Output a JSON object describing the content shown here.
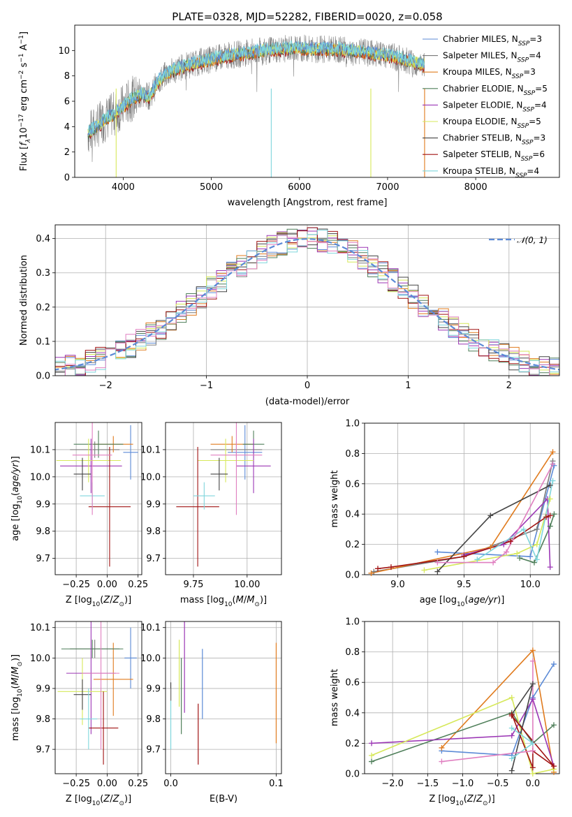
{
  "title": "PLATE=0328, MJD=52282, FIBERID=0020, z=0.058",
  "colors": {
    "Chabrier MILES": "#5b8ad6",
    "Salpeter MILES": "#7a7a7a",
    "Kroupa MILES": "#e07b1e",
    "Chabrier ELODIE": "#4f7f5a",
    "Salpeter ELODIE": "#9b36b5",
    "Kroupa ELODIE": "#d6e85a",
    "Chabrier STELIB": "#444444",
    "Salpeter STELIB": "#a01212",
    "Kroupa STELIB": "#7fd6dc",
    "observed": "#808080",
    "pink": "#e07fc0",
    "gaussian": "#5b8ad6"
  },
  "chart_data": [
    {
      "type": "line",
      "id": "spectrum",
      "xlabel": "wavelength [Angstrom, rest frame]",
      "ylabel": "Flux [f_λ10^-17 erg cm^-2 s^-1 A^-1]",
      "xlim": [
        3450,
        8950
      ],
      "ylim": [
        0,
        12
      ],
      "xticks": [
        4000,
        5000,
        6000,
        7000,
        8000
      ],
      "yticks": [
        0,
        2,
        4,
        6,
        8,
        10
      ],
      "legend": {
        "position": "upper-right",
        "entries": [
          {
            "name": "Chabrier MILES, N",
            "sub": "SSP",
            "suffix": "=3"
          },
          {
            "name": "Salpeter MILES, N",
            "sub": "SSP",
            "suffix": "=4"
          },
          {
            "name": "Kroupa MILES, N",
            "sub": "SSP",
            "suffix": "=3"
          },
          {
            "name": "Chabrier ELODIE, N",
            "sub": "SSP",
            "suffix": "=5"
          },
          {
            "name": "Salpeter ELODIE, N",
            "sub": "SSP",
            "suffix": "=4"
          },
          {
            "name": "Kroupa ELODIE, N",
            "sub": "SSP",
            "suffix": "=5"
          },
          {
            "name": "Chabrier STELIB, N",
            "sub": "SSP",
            "suffix": "=3"
          },
          {
            "name": "Salpeter STELIB, N",
            "sub": "SSP",
            "suffix": "=6"
          },
          {
            "name": "Kroupa STELIB, N",
            "sub": "SSP",
            "suffix": "=4"
          }
        ]
      },
      "model_curve": {
        "x": [
          3600,
          3700,
          3800,
          3900,
          4000,
          4100,
          4200,
          4300,
          4400,
          4500,
          4600,
          4800,
          5000,
          5200,
          5400,
          5600,
          5800,
          6000,
          6200,
          6400,
          6600,
          6800,
          7000,
          7200,
          7400
        ],
        "y": [
          3.5,
          4.0,
          4.6,
          5.0,
          5.6,
          6.2,
          6.5,
          6.4,
          7.6,
          8.2,
          8.5,
          9.0,
          9.3,
          9.6,
          9.8,
          10.0,
          10.1,
          10.2,
          10.1,
          10.1,
          10.0,
          9.8,
          9.6,
          9.3,
          8.9
        ]
      }
    },
    {
      "type": "bar",
      "id": "residuals",
      "xlabel": "(data-model)/error",
      "ylabel": "Normed distribution",
      "xlim": [
        -2.5,
        2.5
      ],
      "ylim": [
        0,
        0.44
      ],
      "xticks": [
        -2,
        -1,
        0,
        1,
        2
      ],
      "yticks": [
        0.0,
        0.1,
        0.2,
        0.3,
        0.4
      ],
      "legend": {
        "position": "upper-right",
        "entries": [
          {
            "name": "𝒩(0, 1)"
          }
        ]
      },
      "bin_width": 0.1
    },
    {
      "type": "scatter",
      "id": "age-vs-Z",
      "xlabel": "Z [log10(Z/Z⊙)]",
      "ylabel": "age [log10(age/yr)]",
      "xlim": [
        -0.42,
        0.28
      ],
      "ylim": [
        9.64,
        10.2
      ],
      "xticks": [
        -0.25,
        0.0,
        0.25
      ],
      "yticks": [
        9.7,
        9.8,
        9.9,
        10.0,
        10.1
      ],
      "points": [
        {
          "s": "Chabrier MILES",
          "x": 0.19,
          "y": 10.09,
          "xe": 0.06,
          "ye": 0.1
        },
        {
          "s": "Salpeter MILES",
          "x": -0.1,
          "y": 10.1,
          "xe": 0.2,
          "ye": 0.03
        },
        {
          "s": "Kroupa MILES",
          "x": 0.05,
          "y": 10.12,
          "xe": 0.16,
          "ye": 0.03
        },
        {
          "s": "Chabrier ELODIE",
          "x": -0.07,
          "y": 10.12,
          "xe": 0.2,
          "ye": 0.05
        },
        {
          "s": "Salpeter ELODIE",
          "x": -0.13,
          "y": 10.04,
          "xe": 0.25,
          "ye": 0.1
        },
        {
          "s": "Kroupa ELODIE",
          "x": -0.15,
          "y": 10.06,
          "xe": 0.26,
          "ye": 0.08
        },
        {
          "s": "Chabrier STELIB",
          "x": -0.2,
          "y": 10.01,
          "xe": 0.07,
          "ye": 0.06
        },
        {
          "s": "Salpeter STELIB",
          "x": 0.02,
          "y": 9.89,
          "xe": 0.17,
          "ye": 0.22
        },
        {
          "s": "Kroupa STELIB",
          "x": -0.12,
          "y": 9.93,
          "xe": 0.1,
          "ye": 0.05
        },
        {
          "s": "pink",
          "x": -0.12,
          "y": 10.08,
          "xe": 0.16,
          "ye": 0.22
        }
      ]
    },
    {
      "type": "scatter",
      "id": "age-vs-mass",
      "xlabel": "mass [log10(M/M⊙)]",
      "ylabel": "",
      "xlim": [
        9.62,
        10.16
      ],
      "ylim": [
        9.64,
        10.2
      ],
      "xticks": [
        9.75,
        10.0
      ],
      "yticks": [
        9.7,
        9.8,
        9.9,
        10.0,
        10.1
      ],
      "points": [
        {
          "s": "Chabrier MILES",
          "x": 9.99,
          "y": 10.09,
          "xe": 0.08,
          "ye": 0.1
        },
        {
          "s": "Salpeter MILES",
          "x": 9.95,
          "y": 10.1,
          "xe": 0.12,
          "ye": 0.03
        },
        {
          "s": "Kroupa MILES",
          "x": 9.93,
          "y": 10.12,
          "xe": 0.1,
          "ye": 0.03
        },
        {
          "s": "Chabrier ELODIE",
          "x": 10.03,
          "y": 10.12,
          "xe": 0.05,
          "ye": 0.05
        },
        {
          "s": "Salpeter ELODIE",
          "x": 10.03,
          "y": 10.04,
          "xe": 0.08,
          "ye": 0.1
        },
        {
          "s": "Kroupa ELODIE",
          "x": 9.9,
          "y": 10.06,
          "xe": 0.13,
          "ye": 0.08
        },
        {
          "s": "Chabrier STELIB",
          "x": 9.87,
          "y": 10.01,
          "xe": 0.04,
          "ye": 0.06
        },
        {
          "s": "Salpeter STELIB",
          "x": 9.77,
          "y": 9.89,
          "xe": 0.1,
          "ye": 0.22
        },
        {
          "s": "Kroupa STELIB",
          "x": 9.8,
          "y": 9.93,
          "xe": 0.05,
          "ye": 0.05
        },
        {
          "s": "pink",
          "x": 9.95,
          "y": 10.08,
          "xe": 0.12,
          "ye": 0.22
        }
      ]
    },
    {
      "type": "line",
      "id": "weight-vs-age",
      "xlabel": "age [log10(age/yr)]",
      "ylabel": "mass weight",
      "xlim": [
        8.75,
        10.22
      ],
      "ylim": [
        0,
        1.0
      ],
      "xticks": [
        9.0,
        9.5,
        10.0
      ],
      "yticks": [
        0.0,
        0.2,
        0.4,
        0.6,
        0.8,
        1.0
      ],
      "series": [
        {
          "s": "Chabrier MILES",
          "x": [
            9.3,
            10.0,
            10.18
          ],
          "y": [
            0.15,
            0.12,
            0.72
          ]
        },
        {
          "s": "Salpeter MILES",
          "x": [
            8.82,
            9.5,
            10.05,
            10.17
          ],
          "y": [
            0.02,
            0.12,
            0.3,
            0.75
          ]
        },
        {
          "s": "Kroupa MILES",
          "x": [
            8.8,
            9.7,
            10.17
          ],
          "y": [
            0.01,
            0.18,
            0.81
          ]
        },
        {
          "s": "Chabrier ELODIE",
          "x": [
            9.92,
            10.03,
            10.15,
            10.18
          ],
          "y": [
            0.11,
            0.08,
            0.32,
            0.4
          ]
        },
        {
          "s": "Salpeter ELODIE",
          "x": [
            9.5,
            9.8,
            10.13,
            10.15
          ],
          "y": [
            0.13,
            0.2,
            0.5,
            0.05
          ]
        },
        {
          "s": "Kroupa ELODIE",
          "x": [
            9.2,
            9.9,
            10.05,
            10.15
          ],
          "y": [
            0.03,
            0.14,
            0.2,
            0.5
          ]
        },
        {
          "s": "Chabrier STELIB",
          "x": [
            9.3,
            9.7,
            10.15
          ],
          "y": [
            0.02,
            0.39,
            0.59
          ]
        },
        {
          "s": "Salpeter STELIB",
          "x": [
            8.85,
            8.95,
            9.5,
            9.85,
            10.12,
            10.15
          ],
          "y": [
            0.04,
            0.05,
            0.12,
            0.22,
            0.38,
            0.39
          ]
        },
        {
          "s": "Kroupa STELIB",
          "x": [
            9.6,
            9.95,
            10.05,
            10.17
          ],
          "y": [
            0.1,
            0.3,
            0.1,
            0.62
          ]
        },
        {
          "s": "pink",
          "x": [
            9.3,
            9.72,
            9.82,
            10.17
          ],
          "y": [
            0.08,
            0.08,
            0.15,
            0.73
          ]
        }
      ]
    },
    {
      "type": "scatter",
      "id": "mass-vs-Z",
      "xlabel": "Z [log10(Z/Z⊙)]",
      "ylabel": "mass [log10(M/M⊙)]",
      "xlim": [
        -0.42,
        0.28
      ],
      "ylim": [
        9.62,
        10.12
      ],
      "xticks": [
        -0.25,
        0.0,
        0.25
      ],
      "yticks": [
        9.7,
        9.8,
        9.9,
        10.0,
        10.1
      ],
      "points": [
        {
          "s": "Chabrier MILES",
          "x": 0.19,
          "y": 10.0,
          "xe": 0.05,
          "ye": 0.1
        },
        {
          "s": "Salpeter MILES",
          "x": -0.1,
          "y": 10.03,
          "xe": 0.2,
          "ye": 0.03
        },
        {
          "s": "Kroupa MILES",
          "x": 0.05,
          "y": 9.93,
          "xe": 0.16,
          "ye": 0.12
        },
        {
          "s": "Chabrier ELODIE",
          "x": -0.12,
          "y": 10.03,
          "xe": 0.25,
          "ye": 0.03
        },
        {
          "s": "Salpeter ELODIE",
          "x": -0.13,
          "y": 9.95,
          "xe": 0.2,
          "ye": 0.2
        },
        {
          "s": "Kroupa ELODIE",
          "x": -0.2,
          "y": 9.89,
          "xe": 0.2,
          "ye": 0.11
        },
        {
          "s": "Chabrier STELIB",
          "x": -0.2,
          "y": 9.88,
          "xe": 0.07,
          "ye": 0.05
        },
        {
          "s": "Salpeter STELIB",
          "x": -0.03,
          "y": 9.77,
          "xe": 0.12,
          "ye": 0.12
        },
        {
          "s": "Kroupa STELIB",
          "x": -0.15,
          "y": 9.8,
          "xe": 0.07,
          "ye": 0.1
        },
        {
          "s": "pink",
          "x": -0.05,
          "y": 9.95,
          "xe": 0.15,
          "ye": 0.25
        }
      ]
    },
    {
      "type": "scatter",
      "id": "mass-vs-EBV",
      "xlabel": "E(B-V)",
      "ylabel": "",
      "xlim": [
        -0.005,
        0.105
      ],
      "ylim": [
        9.62,
        10.12
      ],
      "xticks": [
        0.0,
        0.1
      ],
      "yticks": [
        9.7,
        9.8,
        9.9,
        10.0,
        10.1
      ],
      "segments": [
        {
          "s": "Chabrier MILES",
          "x": 0.03,
          "y0": 9.8,
          "y1": 10.03
        },
        {
          "s": "Kroupa MILES",
          "x": 0.1,
          "y0": 9.72,
          "y1": 10.05
        },
        {
          "s": "Salpeter ELODIE",
          "x": 0.013,
          "y0": 9.82,
          "y1": 10.15
        },
        {
          "s": "Kroupa ELODIE",
          "x": 0.008,
          "y0": 9.84,
          "y1": 10.06
        },
        {
          "s": "Chabrier ELODIE",
          "x": 0.01,
          "y0": 9.75,
          "y1": 10.0
        },
        {
          "s": "Chabrier STELIB",
          "x": 0.0,
          "y0": 9.86,
          "y1": 9.92
        },
        {
          "s": "Salpeter STELIB",
          "x": 0.026,
          "y0": 9.65,
          "y1": 9.85
        },
        {
          "s": "Kroupa STELIB",
          "x": 0.0,
          "y0": 9.7,
          "y1": 9.86
        },
        {
          "s": "Salpeter MILES",
          "x": 0.0,
          "y0": 9.86,
          "y1": 9.9
        }
      ]
    },
    {
      "type": "line",
      "id": "weight-vs-Z",
      "xlabel": "Z [log10(Z/Z⊙)]",
      "ylabel": "mass weight",
      "xlim": [
        -2.4,
        0.38
      ],
      "ylim": [
        0,
        1.0
      ],
      "xticks": [
        -2.0,
        -1.5,
        -1.0,
        -0.5,
        0.0
      ],
      "yticks": [
        0.0,
        0.2,
        0.4,
        0.6,
        0.8,
        1.0
      ],
      "series": [
        {
          "s": "Chabrier MILES",
          "x": [
            -1.3,
            -0.3,
            0.0,
            0.3
          ],
          "y": [
            0.15,
            0.12,
            0.5,
            0.72
          ]
        },
        {
          "s": "Kroupa MILES",
          "x": [
            -1.3,
            0.0,
            0.3
          ],
          "y": [
            0.17,
            0.81,
            0.01
          ]
        },
        {
          "s": "Chabrier ELODIE",
          "x": [
            -2.3,
            -0.3,
            0.0,
            0.3
          ],
          "y": [
            0.08,
            0.4,
            0.2,
            0.32
          ]
        },
        {
          "s": "Salpeter ELODIE",
          "x": [
            -2.3,
            -0.3,
            0.0,
            0.3
          ],
          "y": [
            0.2,
            0.25,
            0.49,
            0.05
          ]
        },
        {
          "s": "Kroupa ELODIE",
          "x": [
            -2.3,
            -0.3,
            0.0,
            0.3
          ],
          "y": [
            0.12,
            0.5,
            0.0,
            0.03
          ]
        },
        {
          "s": "Chabrier STELIB",
          "x": [
            -0.3,
            0.0,
            -0.3
          ],
          "y": [
            0.02,
            0.59,
            0.39
          ]
        },
        {
          "s": "Salpeter STELIB",
          "x": [
            -0.3,
            0.0,
            0.0,
            0.3,
            -0.3
          ],
          "y": [
            0.39,
            0.04,
            0.15,
            0.05,
            0.38
          ]
        },
        {
          "s": "Kroupa STELIB",
          "x": [
            -0.3,
            0.0,
            -0.3
          ],
          "y": [
            0.1,
            0.2,
            0.3
          ]
        },
        {
          "s": "pink",
          "x": [
            -1.3,
            0.0,
            0.0
          ],
          "y": [
            0.08,
            0.15,
            0.74
          ]
        }
      ]
    }
  ]
}
